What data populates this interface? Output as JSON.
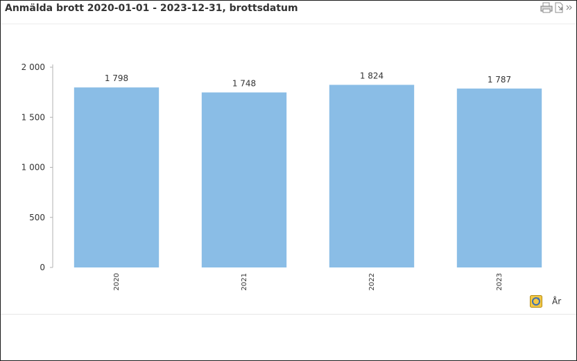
{
  "title": "Anmälda brott 2020-01-01 - 2023-12-31, brottsdatum",
  "icons": {
    "print": "printer-icon",
    "export": "export-icon",
    "expand": "chevron-double-right-icon",
    "cycle": "cycle-dimension-icon"
  },
  "colors": {
    "bar": "#8ABDE6",
    "axis": "#b0b0b0",
    "text": "#333333"
  },
  "chart_data": {
    "type": "bar",
    "title": "Anmälda brott 2020-01-01 - 2023-12-31, brottsdatum",
    "xlabel": "År",
    "ylabel": "",
    "categories": [
      "2020",
      "2021",
      "2022",
      "2023"
    ],
    "values": [
      1798,
      1748,
      1824,
      1787
    ],
    "value_labels": [
      "1 798",
      "1 748",
      "1 824",
      "1 787"
    ],
    "ylim": [
      0,
      2000
    ],
    "yticks": [
      0,
      500,
      1000,
      1500,
      2000
    ],
    "ytick_labels": [
      "0",
      "500",
      "1 000",
      "1 500",
      "2 000"
    ],
    "grid": false,
    "legend": "none"
  }
}
